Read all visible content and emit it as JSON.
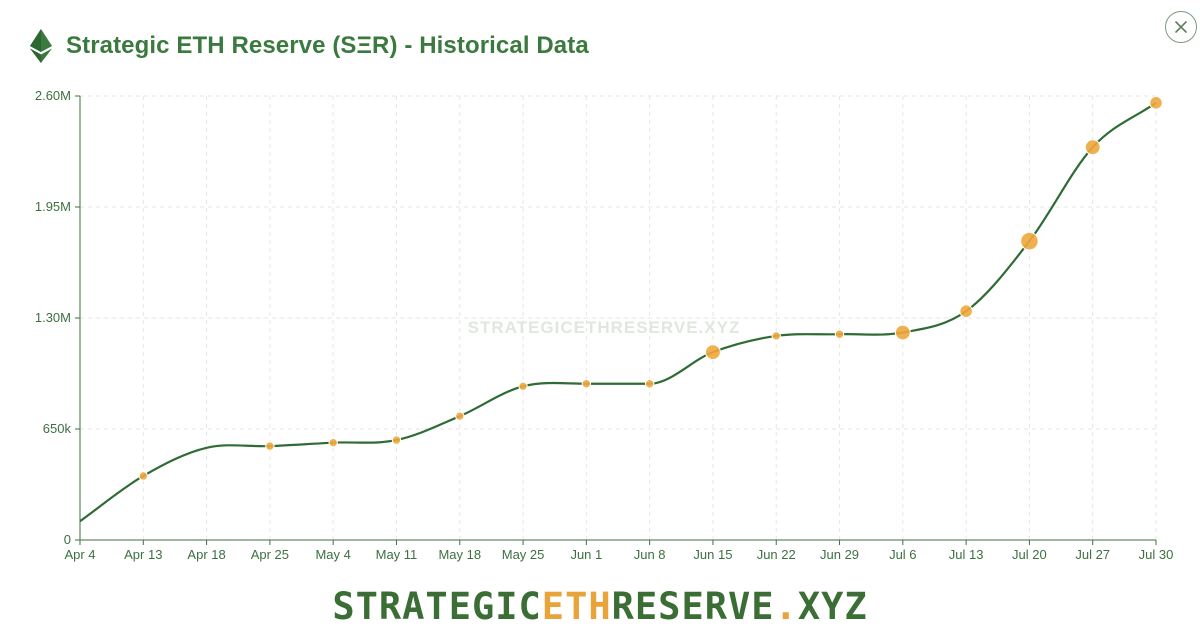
{
  "header": {
    "title": "Strategic ETH Reserve (SΞR) - Historical Data",
    "icon": "ethereum-icon"
  },
  "close_button": {
    "icon": "close-icon",
    "label": "Close"
  },
  "watermark": "STRATEGICETHRESERVE.XYZ",
  "footer": {
    "brand_prefix": "STRATEGIC",
    "brand_accent": "ETH",
    "brand_middle": "RESERVE",
    "brand_dot": ".",
    "brand_suffix": "XYZ"
  },
  "colors": {
    "line": "#2f6b34",
    "marker": "#efa73d",
    "title": "#3b7a3f",
    "axis_text": "#3d7040",
    "grid": "#e6e6e6",
    "accent": "#e8a33a"
  },
  "chart_data": {
    "type": "line",
    "title": "Strategic ETH Reserve (SΞR) - Historical Data",
    "xlabel": "",
    "ylabel": "",
    "ylim": [
      0,
      2600000
    ],
    "yticks": [
      0,
      650000,
      1300000,
      1950000,
      2600000
    ],
    "ytick_labels": [
      "0",
      "650k",
      "1.30M",
      "1.95M",
      "2.60M"
    ],
    "xtick_labels": [
      "Apr 4",
      "Apr 13",
      "Apr 18",
      "Apr 25",
      "May 4",
      "May 11",
      "May 18",
      "May 25",
      "Jun 1",
      "Jun 8",
      "Jun 15",
      "Jun 22",
      "Jun 29",
      "Jul 6",
      "Jul 13",
      "Jul 20",
      "Jul 27",
      "Jul 30"
    ],
    "x": [
      "Apr 4",
      "Apr 13",
      "Apr 18",
      "Apr 25",
      "May 4",
      "May 11",
      "May 18",
      "May 25",
      "Jun 1",
      "Jun 8",
      "Jun 15",
      "Jun 22",
      "Jun 29",
      "Jul 6",
      "Jul 13",
      "Jul 20",
      "Jul 27",
      "Jul 30"
    ],
    "values": [
      110000,
      375000,
      540000,
      550000,
      570000,
      585000,
      725000,
      900000,
      915000,
      915000,
      1100000,
      1195000,
      1205000,
      1215000,
      1340000,
      1750000,
      2300000,
      2560000
    ],
    "markers": [
      false,
      true,
      false,
      true,
      true,
      true,
      true,
      true,
      true,
      true,
      true,
      true,
      true,
      true,
      true,
      true,
      true,
      true
    ],
    "marker_size": [
      0,
      1,
      0,
      1,
      1,
      1,
      1,
      1,
      1,
      1,
      2,
      1,
      1,
      2,
      1.3,
      3,
      2,
      1.3
    ],
    "grid": true
  }
}
